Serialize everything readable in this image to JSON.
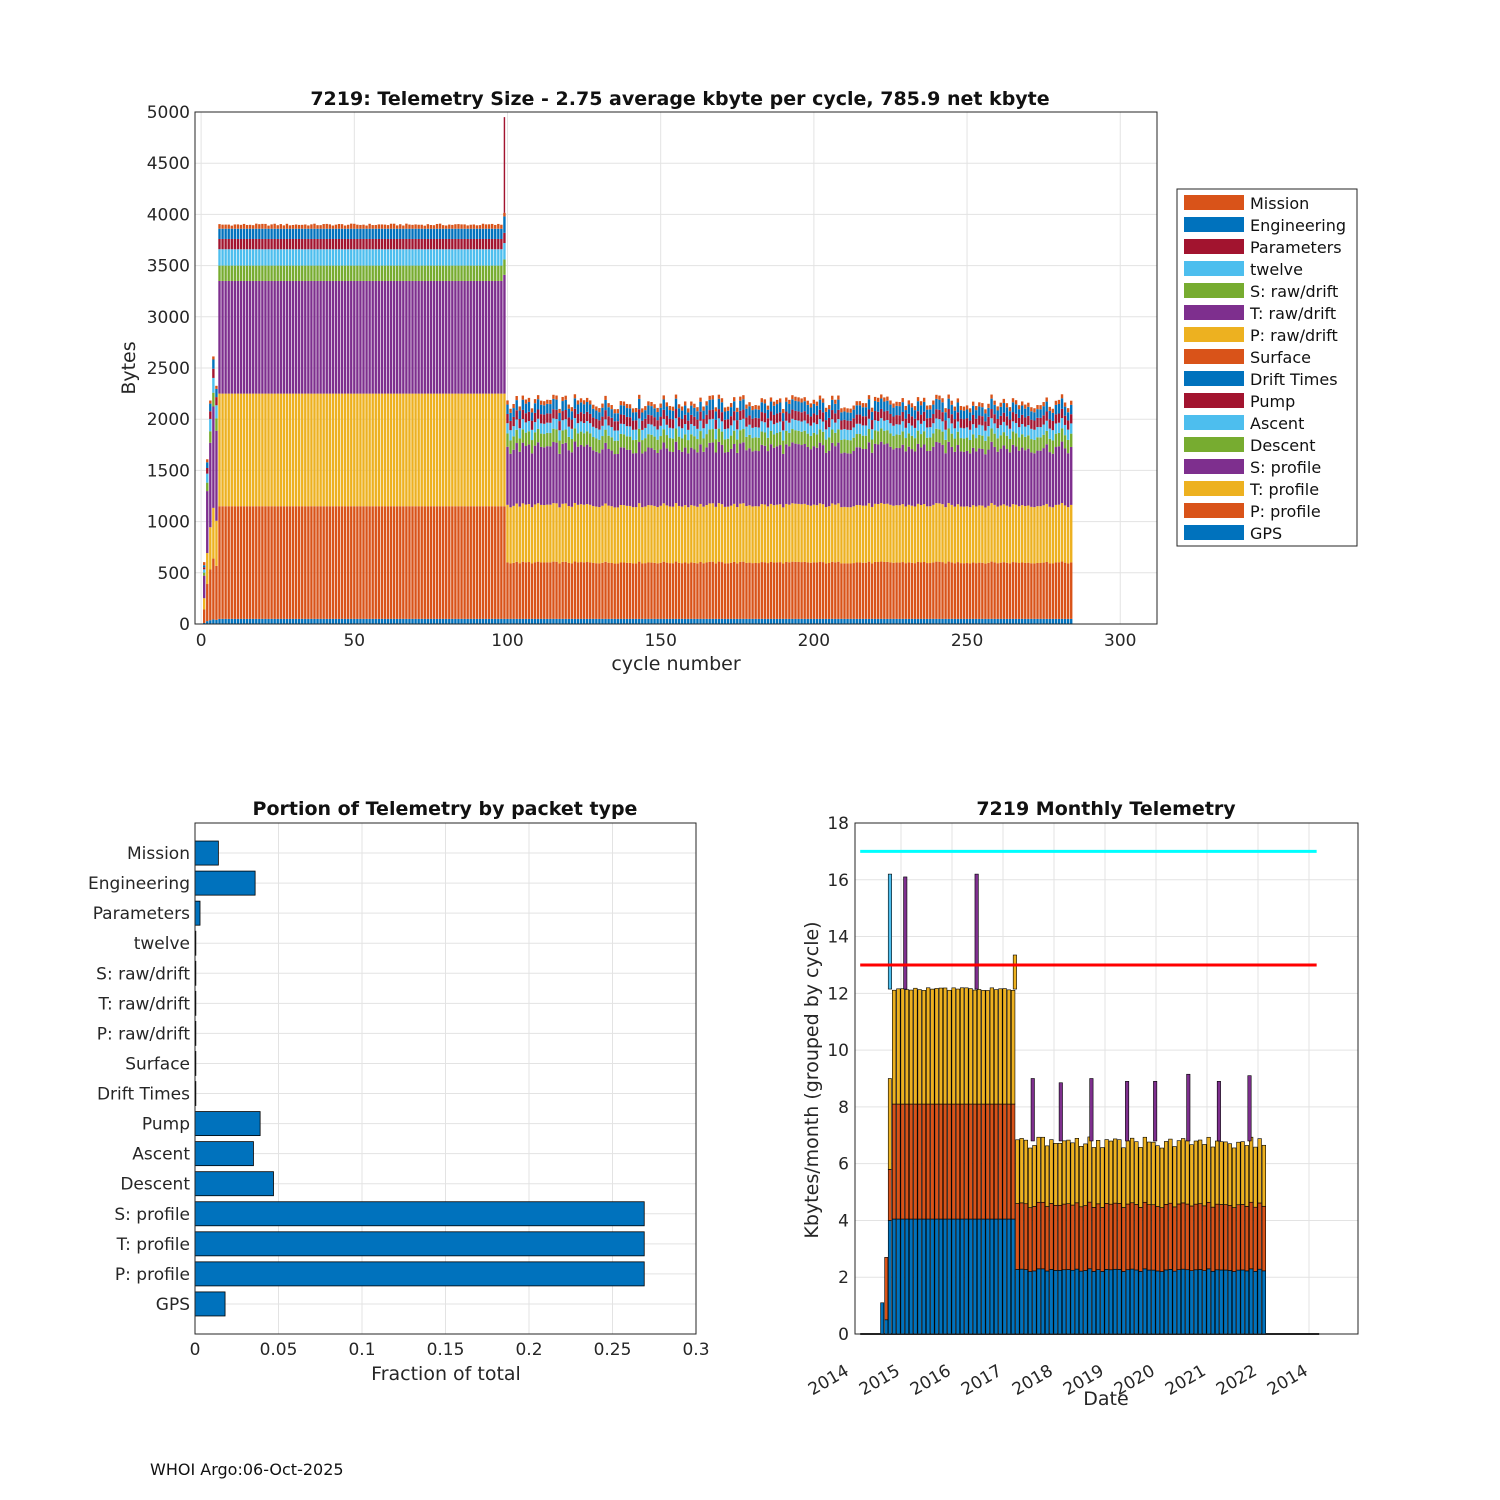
{
  "footer": "WHOI Argo:06-Oct-2025",
  "colors": {
    "mission": "#D95319",
    "engineering": "#0072BD",
    "parameters": "#A2142F",
    "twelve": "#4DBEEE",
    "s_raw": "#77AC30",
    "t_raw": "#7E2F8E",
    "p_raw": "#EDB120",
    "cyan_line": "#00FFFF",
    "red_line": "#FF0000"
  },
  "chart_data": [
    {
      "id": "top",
      "type": "bar",
      "stacked": true,
      "title": "7219: Telemetry Size - 2.75 average kbyte per cycle,  785.9 net kbyte",
      "xlabel": "cycle number",
      "ylabel": "Bytes",
      "xlim": [
        -2,
        312
      ],
      "ylim": [
        0,
        5000
      ],
      "xticks": [
        0,
        50,
        100,
        150,
        200,
        250,
        300
      ],
      "yticks": [
        0,
        500,
        1000,
        1500,
        2000,
        2500,
        3000,
        3500,
        4000,
        4500,
        5000
      ],
      "grid": true,
      "legend_position": "right",
      "legend": [
        "Mission",
        "Engineering",
        "Parameters",
        "twelve",
        "S: raw/drift",
        "T: raw/drift",
        "P: raw/drift",
        "Surface",
        "Drift Times",
        "Pump",
        "Ascent",
        "Descent",
        "S: profile",
        "T: profile",
        "P: profile",
        "GPS"
      ],
      "cycles_range": [
        1,
        284
      ],
      "series_typical": [
        {
          "name": "GPS",
          "cycles_1_99": 50,
          "cycles_100_284": 50
        },
        {
          "name": "P: profile",
          "cycles_1_99": 1100,
          "cycles_100_284": 550
        },
        {
          "name": "T: profile",
          "cycles_1_99": 1100,
          "cycles_100_284": 560
        },
        {
          "name": "S: profile",
          "cycles_1_99": 1100,
          "cycles_100_284": 560
        },
        {
          "name": "Descent",
          "cycles_1_99": 150,
          "cycles_100_284": 130
        },
        {
          "name": "Ascent",
          "cycles_1_99": 160,
          "cycles_100_284": 100
        },
        {
          "name": "Pump",
          "cycles_1_99": 100,
          "cycles_100_284": 90
        },
        {
          "name": "Engineering",
          "cycles_1_99": 100,
          "cycles_100_284": 90
        },
        {
          "name": "Mission",
          "cycles_1_99": 30,
          "cycles_100_284": 40
        }
      ],
      "note": "Cycle 99 spike to about 4950 bytes; first cycles (1-5) partial stacks up to about 3000"
    },
    {
      "id": "bottom_left",
      "type": "barh",
      "title": "Portion of Telemetry by packet type",
      "xlabel": "Fraction of total",
      "xlim": [
        0,
        0.3
      ],
      "xticks": [
        0,
        0.05,
        0.1,
        0.15,
        0.2,
        0.25,
        0.3
      ],
      "xtick_labels": [
        "0",
        "0.05",
        "0.1",
        "0.15",
        "0.2",
        "0.25",
        "0.3"
      ],
      "grid": true,
      "categories": [
        "Mission",
        "Engineering",
        "Parameters",
        "twelve",
        "S: raw/drift",
        "T: raw/drift",
        "P: raw/drift",
        "Surface",
        "Drift Times",
        "Pump",
        "Ascent",
        "Descent",
        "S: profile",
        "T: profile",
        "P: profile",
        "GPS"
      ],
      "values": [
        0.014,
        0.036,
        0.003,
        0.0005,
        0.0005,
        0.0005,
        0.0005,
        0.0005,
        0.0005,
        0.039,
        0.035,
        0.047,
        0.269,
        0.269,
        0.269,
        0.018
      ]
    },
    {
      "id": "bottom_right",
      "type": "bar",
      "stacked": true,
      "title": "7219 Monthly Telemetry",
      "xlabel": "Date",
      "ylabel": "Kbytes/month (grouped by cycle)",
      "ylim": [
        0,
        18
      ],
      "yticks": [
        0,
        2,
        4,
        6,
        8,
        10,
        12,
        14,
        16,
        18
      ],
      "xtick_labels": [
        "2014",
        "2015",
        "2016",
        "2017",
        "2018",
        "2019",
        "2020",
        "2021",
        "2022",
        "2014"
      ],
      "grid": true,
      "hlines": [
        {
          "value": 17,
          "color": "cyan"
        },
        {
          "value": 13,
          "color": "red"
        }
      ],
      "series_typical": [
        {
          "name": "GPS+P: profile",
          "early_months": 4.05,
          "late_months": 2.25
        },
        {
          "name": "T: profile",
          "early_months": 4.05,
          "late_months": 2.3
        },
        {
          "name": "S: profile",
          "early_months": 4.05,
          "late_months": 2.2
        }
      ],
      "early_period": "2014.6 to 2017.2",
      "late_period": "2017.2 to 2022.2",
      "spikes": [
        {
          "date": 2014.75,
          "value": 16.2
        },
        {
          "date": 2015.05,
          "value": 16.1
        },
        {
          "date": 2016.45,
          "value": 16.2
        },
        {
          "date": 2017.2,
          "value": 13.35
        },
        {
          "date": 2017.55,
          "value": 9.0
        },
        {
          "date": 2018.1,
          "value": 8.85
        },
        {
          "date": 2018.7,
          "value": 9.0
        },
        {
          "date": 2019.4,
          "value": 8.9
        },
        {
          "date": 2019.95,
          "value": 8.9
        },
        {
          "date": 2020.6,
          "value": 9.15
        },
        {
          "date": 2021.2,
          "value": 8.9
        },
        {
          "date": 2021.8,
          "value": 9.1
        }
      ]
    }
  ]
}
